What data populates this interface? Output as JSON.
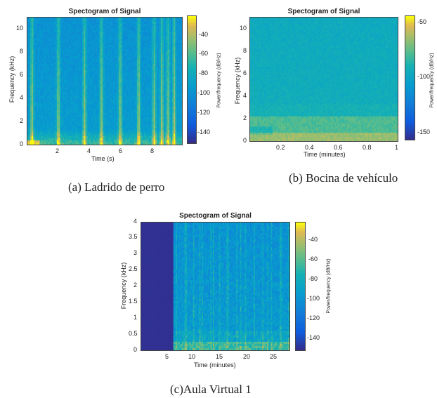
{
  "chart_data": [
    {
      "type": "heatmap",
      "id": "a",
      "title": "Spectogram of Signal",
      "xlabel": "Time (s)",
      "ylabel": "Frequency (kHz)",
      "colorbar_label": "Power/frequency (dB/Hz)",
      "xticks": [
        "2",
        "4",
        "6",
        "8"
      ],
      "yticks": [
        "0",
        "2",
        "4",
        "6",
        "8",
        "10"
      ],
      "cticks": [
        "-40",
        "-60",
        "-80",
        "-100",
        "-120",
        "-140"
      ],
      "xlim": [
        0,
        9.8
      ],
      "ylim": [
        0,
        11
      ],
      "clim": [
        -155,
        -25
      ],
      "caption": "(a)  Ladrido de perro"
    },
    {
      "type": "heatmap",
      "id": "b",
      "title": "Spectogram of Signal",
      "xlabel": "Time (minutes)",
      "ylabel": "Frequency (kHz)",
      "colorbar_label": "Power/frequency (dB/Hz)",
      "xticks": [
        "0.2",
        "0.4",
        "0.6",
        "0.8",
        "1"
      ],
      "yticks": [
        "0",
        "2",
        "4",
        "6",
        "8",
        "10"
      ],
      "cticks": [
        "-50",
        "-100",
        "-150"
      ],
      "xlim": [
        0,
        1.02
      ],
      "ylim": [
        0,
        11
      ],
      "clim": [
        -160,
        -45
      ],
      "caption": "(b)  Bocina de vehículo"
    },
    {
      "type": "heatmap",
      "id": "c",
      "title": "Spectogram of Signal",
      "xlabel": "Time (minutes)",
      "ylabel": "Frequency (kHz)",
      "colorbar_label": "Power/frequency (dB/Hz)",
      "xticks": [
        "5",
        "10",
        "15",
        "20",
        "25"
      ],
      "yticks": [
        "0",
        "0.5",
        "1",
        "1.5",
        "2",
        "2.5",
        "3",
        "3.5",
        "4"
      ],
      "cticks": [
        "-40",
        "-60",
        "-80",
        "-100",
        "-120",
        "-140"
      ],
      "xlim": [
        0,
        28
      ],
      "ylim": [
        0,
        4
      ],
      "clim": [
        -160,
        -25
      ],
      "caption": "(c)Aula Virtual 1"
    }
  ]
}
